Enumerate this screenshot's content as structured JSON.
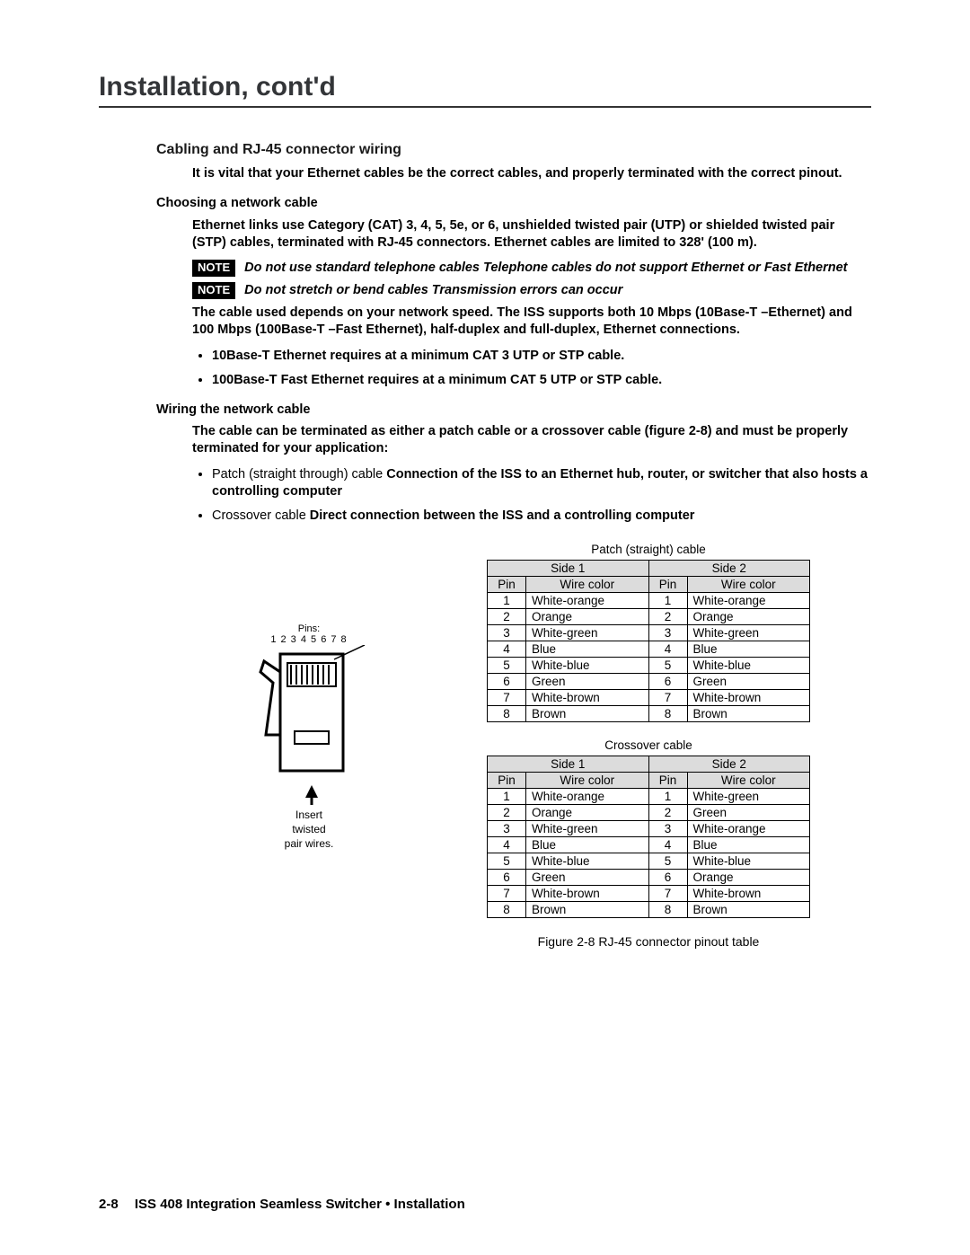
{
  "chapterTitle": "Installation, cont'd",
  "section": {
    "title": "Cabling and RJ-45 connector wiring",
    "intro": "It is vital that your Ethernet cables be the correct cables, and properly terminated with the correct pinout.",
    "choosing": {
      "heading": "Choosing a network cable",
      "para1": "Ethernet links use Category (CAT) 3, 4, 5, 5e, or 6, unshielded twisted pair (UTP) or shielded twisted pair (STP) cables, terminated with RJ-45 connectors.  Ethernet cables are limited to 328' (100 m).",
      "noteLabel": "NOTE",
      "note1": "Do not use standard telephone cables  Telephone cables do not support Ethernet or Fast Ethernet",
      "note2": "Do not stretch or bend cables  Transmission errors can occur",
      "para2": "The cable used depends on your network speed.  The ISS supports both 10 Mbps (10Base-T –Ethernet) and 100 Mbps (100Base-T –Fast Ethernet), half-duplex and full-duplex, Ethernet connections.",
      "bullet1": "10Base-T Ethernet requires at a minimum CAT 3 UTP or STP cable.",
      "bullet2": "100Base-T Fast Ethernet requires at a minimum CAT 5 UTP or STP cable."
    },
    "wiring": {
      "heading": "Wiring the network cable",
      "para1": "The cable can be terminated as either a patch cable or a crossover cable (figure 2-8) and must be properly terminated for your application:",
      "item1_lead": "Patch (straight through) cable ",
      "item1_bold": "  Connection of the ISS to an Ethernet hub, router, or switcher that also hosts a controlling computer",
      "item2_lead": "Crossover cable ",
      "item2_bold": "  Direct connection between the ISS and a controlling computer"
    }
  },
  "connector": {
    "pinsLabel": "Pins:",
    "pinsNums": "1 2 3 4 5 6 7 8",
    "insert1": "Insert",
    "insert2": "twisted",
    "insert3": "pair wires."
  },
  "tables": {
    "headers": {
      "side1": "Side 1",
      "side2": "Side 2",
      "pin": "Pin",
      "wirecolor": "Wire color"
    },
    "patch": {
      "caption": "Patch (straight) cable",
      "rows": [
        {
          "p1": "1",
          "c1": "White-orange",
          "p2": "1",
          "c2": "White-orange"
        },
        {
          "p1": "2",
          "c1": "Orange",
          "p2": "2",
          "c2": "Orange"
        },
        {
          "p1": "3",
          "c1": "White-green",
          "p2": "3",
          "c2": "White-green"
        },
        {
          "p1": "4",
          "c1": "Blue",
          "p2": "4",
          "c2": "Blue"
        },
        {
          "p1": "5",
          "c1": "White-blue",
          "p2": "5",
          "c2": "White-blue"
        },
        {
          "p1": "6",
          "c1": "Green",
          "p2": "6",
          "c2": "Green"
        },
        {
          "p1": "7",
          "c1": "White-brown",
          "p2": "7",
          "c2": "White-brown"
        },
        {
          "p1": "8",
          "c1": "Brown",
          "p2": "8",
          "c2": "Brown"
        }
      ]
    },
    "crossover": {
      "caption": "Crossover cable",
      "rows": [
        {
          "p1": "1",
          "c1": "White-orange",
          "p2": "1",
          "c2": "White-green"
        },
        {
          "p1": "2",
          "c1": "Orange",
          "p2": "2",
          "c2": "Green"
        },
        {
          "p1": "3",
          "c1": "White-green",
          "p2": "3",
          "c2": "White-orange"
        },
        {
          "p1": "4",
          "c1": "Blue",
          "p2": "4",
          "c2": "Blue"
        },
        {
          "p1": "5",
          "c1": "White-blue",
          "p2": "5",
          "c2": "White-blue"
        },
        {
          "p1": "6",
          "c1": "Green",
          "p2": "6",
          "c2": "Orange"
        },
        {
          "p1": "7",
          "c1": "White-brown",
          "p2": "7",
          "c2": "White-brown"
        },
        {
          "p1": "8",
          "c1": "Brown",
          "p2": "8",
          "c2": "Brown"
        }
      ]
    }
  },
  "figureCaption": "Figure 2-8   RJ-45 connector pinout table",
  "footer": {
    "pageNum": "2-8",
    "text": "ISS 408 Integration Seamless Switcher • Installation"
  }
}
